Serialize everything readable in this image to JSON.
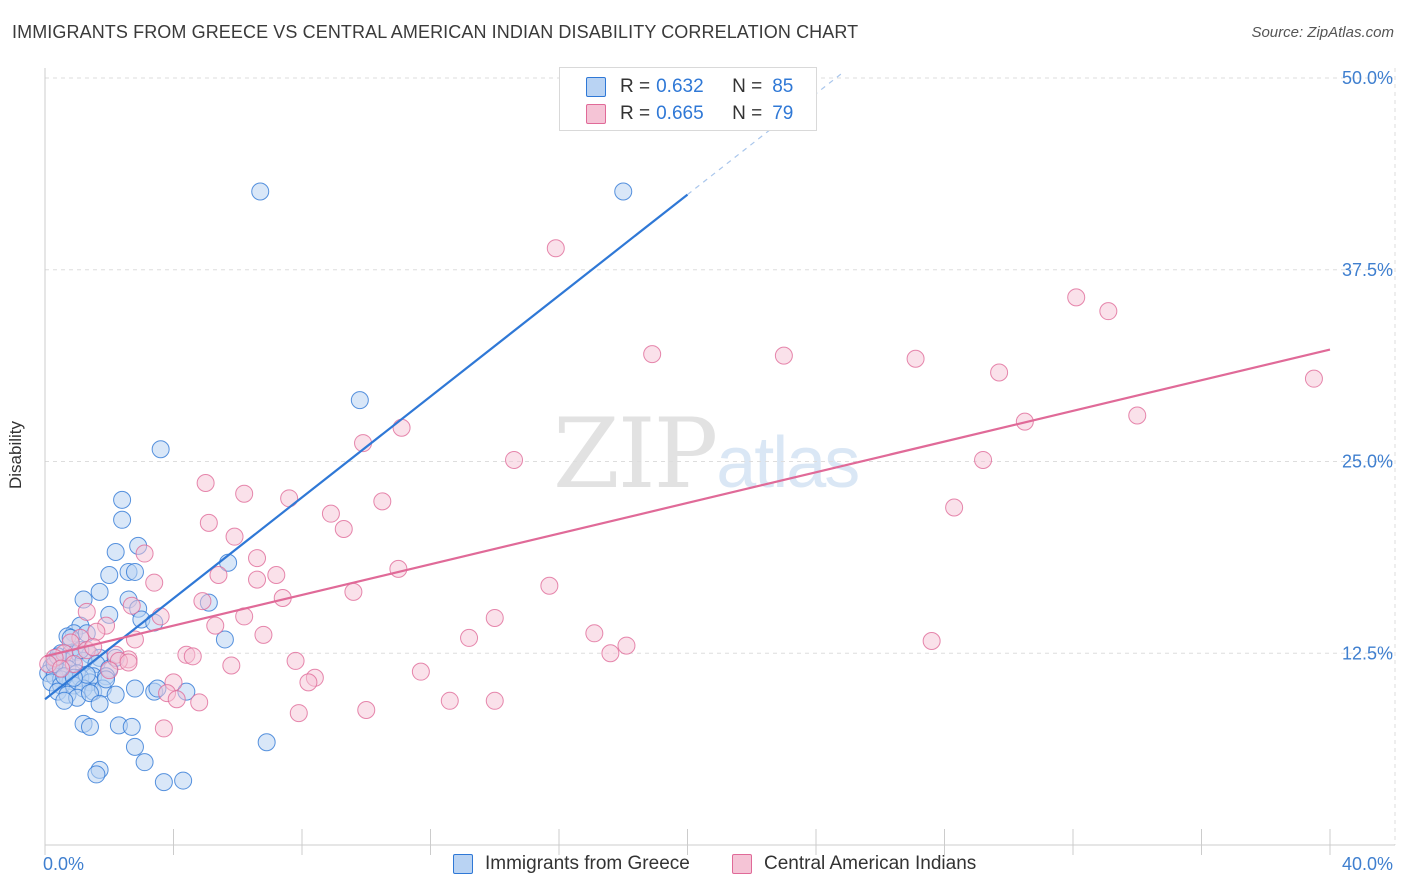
{
  "title": "IMMIGRANTS FROM GREECE VS CENTRAL AMERICAN INDIAN DISABILITY CORRELATION CHART",
  "source": "Source: ZipAtlas.com",
  "watermark": {
    "zip": "ZIP",
    "atlas": "atlas"
  },
  "legend": {
    "r_label": "R =",
    "n_label": "N =",
    "rows": [
      {
        "name": "Immigrants from Greece",
        "r": "0.632",
        "n": "85"
      },
      {
        "name": "Central American Indians",
        "r": "0.665",
        "n": "79"
      }
    ]
  },
  "colors": {
    "blue": "#2f78d6",
    "blue_fill": "#b9d3f3",
    "pink": "#e06a98",
    "pink_fill": "#f5c4d6",
    "axis_text": "#3f7fcf",
    "grid": "#dddddd"
  },
  "chart_data": {
    "type": "scatter",
    "title": "IMMIGRANTS FROM GREECE VS CENTRAL AMERICAN INDIAN DISABILITY CORRELATION CHART",
    "xlabel": "",
    "ylabel": "Disability",
    "xlim": [
      0,
      40
    ],
    "ylim": [
      0,
      50
    ],
    "x_tick_labels": [
      "0.0%",
      "40.0%"
    ],
    "y_ticks": [
      12.5,
      25.0,
      37.5,
      50.0
    ],
    "y_tick_labels": [
      "12.5%",
      "25.0%",
      "37.5%",
      "50.0%"
    ],
    "grid": true,
    "series": [
      {
        "name": "Immigrants from Greece",
        "r": 0.632,
        "n": 85,
        "trend": {
          "x0": 0.0,
          "y0": 9.5,
          "x1": 20.0,
          "y1": 42.4,
          "dash_to_x": 24.8
        },
        "points": [
          [
            6.7,
            42.6
          ],
          [
            18.0,
            42.6
          ],
          [
            9.8,
            29.0
          ],
          [
            3.6,
            25.8
          ],
          [
            2.4,
            22.5
          ],
          [
            2.4,
            21.2
          ],
          [
            2.9,
            19.5
          ],
          [
            2.2,
            19.1
          ],
          [
            5.7,
            18.4
          ],
          [
            2.6,
            17.8
          ],
          [
            2.0,
            17.6
          ],
          [
            2.8,
            17.8
          ],
          [
            1.7,
            16.5
          ],
          [
            1.2,
            16.0
          ],
          [
            2.6,
            16.0
          ],
          [
            5.1,
            15.8
          ],
          [
            2.0,
            15.0
          ],
          [
            2.9,
            15.4
          ],
          [
            3.0,
            14.7
          ],
          [
            3.4,
            14.5
          ],
          [
            1.1,
            14.3
          ],
          [
            0.9,
            13.8
          ],
          [
            0.7,
            13.6
          ],
          [
            1.3,
            13.8
          ],
          [
            5.6,
            13.4
          ],
          [
            0.5,
            12.5
          ],
          [
            0.8,
            12.5
          ],
          [
            1.0,
            12.6
          ],
          [
            1.4,
            12.4
          ],
          [
            1.7,
            12.2
          ],
          [
            0.3,
            12.0
          ],
          [
            0.6,
            12.0
          ],
          [
            0.9,
            12.2
          ],
          [
            1.2,
            12.0
          ],
          [
            1.6,
            11.8
          ],
          [
            2.0,
            11.5
          ],
          [
            0.2,
            11.6
          ],
          [
            0.4,
            11.4
          ],
          [
            0.7,
            11.5
          ],
          [
            1.0,
            11.2
          ],
          [
            1.5,
            11.0
          ],
          [
            1.9,
            11.0
          ],
          [
            0.1,
            11.2
          ],
          [
            0.3,
            11.0
          ],
          [
            0.5,
            10.8
          ],
          [
            0.8,
            10.7
          ],
          [
            1.1,
            10.9
          ],
          [
            1.4,
            10.6
          ],
          [
            0.2,
            10.6
          ],
          [
            0.5,
            10.4
          ],
          [
            0.9,
            10.4
          ],
          [
            1.2,
            10.2
          ],
          [
            1.5,
            10.0
          ],
          [
            1.8,
            10.2
          ],
          [
            0.4,
            10.0
          ],
          [
            0.7,
            9.8
          ],
          [
            1.0,
            9.6
          ],
          [
            1.4,
            9.9
          ],
          [
            2.2,
            9.8
          ],
          [
            2.8,
            10.2
          ],
          [
            3.4,
            10.0
          ],
          [
            4.4,
            10.0
          ],
          [
            0.6,
            9.4
          ],
          [
            1.7,
            9.2
          ],
          [
            3.5,
            10.2
          ],
          [
            1.2,
            7.9
          ],
          [
            1.4,
            7.7
          ],
          [
            2.3,
            7.8
          ],
          [
            2.7,
            7.7
          ],
          [
            6.9,
            6.7
          ],
          [
            2.8,
            6.4
          ],
          [
            3.1,
            5.4
          ],
          [
            1.7,
            4.9
          ],
          [
            1.6,
            4.6
          ],
          [
            3.7,
            4.1
          ],
          [
            4.3,
            4.2
          ],
          [
            2.2,
            12.2
          ],
          [
            0.8,
            13.5
          ],
          [
            1.9,
            10.8
          ],
          [
            0.3,
            11.8
          ],
          [
            1.1,
            12.7
          ],
          [
            0.6,
            11.0
          ],
          [
            1.3,
            11.1
          ],
          [
            0.9,
            10.9
          ],
          [
            0.4,
            12.3
          ]
        ]
      },
      {
        "name": "Central American Indians",
        "r": 0.665,
        "n": 79,
        "trend": {
          "x0": 0.0,
          "y0": 12.3,
          "x1": 40.0,
          "y1": 32.3
        },
        "points": [
          [
            15.9,
            38.9
          ],
          [
            32.1,
            35.7
          ],
          [
            33.1,
            34.8
          ],
          [
            18.9,
            32.0
          ],
          [
            23.0,
            31.9
          ],
          [
            27.1,
            31.7
          ],
          [
            29.7,
            30.8
          ],
          [
            39.5,
            30.4
          ],
          [
            34.0,
            28.0
          ],
          [
            30.5,
            27.6
          ],
          [
            11.1,
            27.2
          ],
          [
            9.9,
            26.2
          ],
          [
            14.6,
            25.1
          ],
          [
            29.2,
            25.1
          ],
          [
            5.0,
            23.6
          ],
          [
            6.2,
            22.9
          ],
          [
            7.6,
            22.6
          ],
          [
            10.5,
            22.4
          ],
          [
            28.3,
            22.0
          ],
          [
            8.9,
            21.6
          ],
          [
            5.1,
            21.0
          ],
          [
            9.3,
            20.6
          ],
          [
            5.9,
            20.1
          ],
          [
            3.1,
            19.0
          ],
          [
            6.6,
            18.7
          ],
          [
            11.0,
            18.0
          ],
          [
            5.4,
            17.6
          ],
          [
            7.2,
            17.6
          ],
          [
            6.6,
            17.3
          ],
          [
            3.4,
            17.1
          ],
          [
            15.7,
            16.9
          ],
          [
            9.6,
            16.5
          ],
          [
            7.4,
            16.1
          ],
          [
            4.9,
            15.9
          ],
          [
            2.7,
            15.6
          ],
          [
            1.3,
            15.2
          ],
          [
            3.6,
            14.9
          ],
          [
            6.2,
            14.9
          ],
          [
            14.0,
            14.8
          ],
          [
            5.3,
            14.3
          ],
          [
            1.9,
            14.3
          ],
          [
            1.6,
            13.9
          ],
          [
            17.1,
            13.8
          ],
          [
            6.8,
            13.7
          ],
          [
            1.1,
            13.5
          ],
          [
            0.8,
            13.2
          ],
          [
            2.8,
            13.4
          ],
          [
            13.2,
            13.5
          ],
          [
            18.1,
            13.0
          ],
          [
            27.6,
            13.3
          ],
          [
            1.3,
            12.7
          ],
          [
            0.6,
            12.5
          ],
          [
            2.2,
            12.4
          ],
          [
            4.4,
            12.4
          ],
          [
            4.6,
            12.3
          ],
          [
            17.6,
            12.5
          ],
          [
            2.6,
            12.1
          ],
          [
            0.3,
            12.2
          ],
          [
            2.3,
            12.0
          ],
          [
            2.6,
            11.9
          ],
          [
            7.8,
            12.0
          ],
          [
            5.8,
            11.7
          ],
          [
            0.9,
            11.8
          ],
          [
            0.1,
            11.8
          ],
          [
            11.7,
            11.3
          ],
          [
            8.4,
            10.9
          ],
          [
            8.2,
            10.6
          ],
          [
            4.0,
            10.6
          ],
          [
            3.8,
            9.9
          ],
          [
            4.1,
            9.5
          ],
          [
            4.8,
            9.3
          ],
          [
            12.6,
            9.4
          ],
          [
            14.0,
            9.4
          ],
          [
            10.0,
            8.8
          ],
          [
            7.9,
            8.6
          ],
          [
            3.7,
            7.6
          ],
          [
            0.5,
            11.5
          ],
          [
            1.5,
            12.9
          ],
          [
            2.0,
            11.4
          ]
        ]
      }
    ]
  }
}
